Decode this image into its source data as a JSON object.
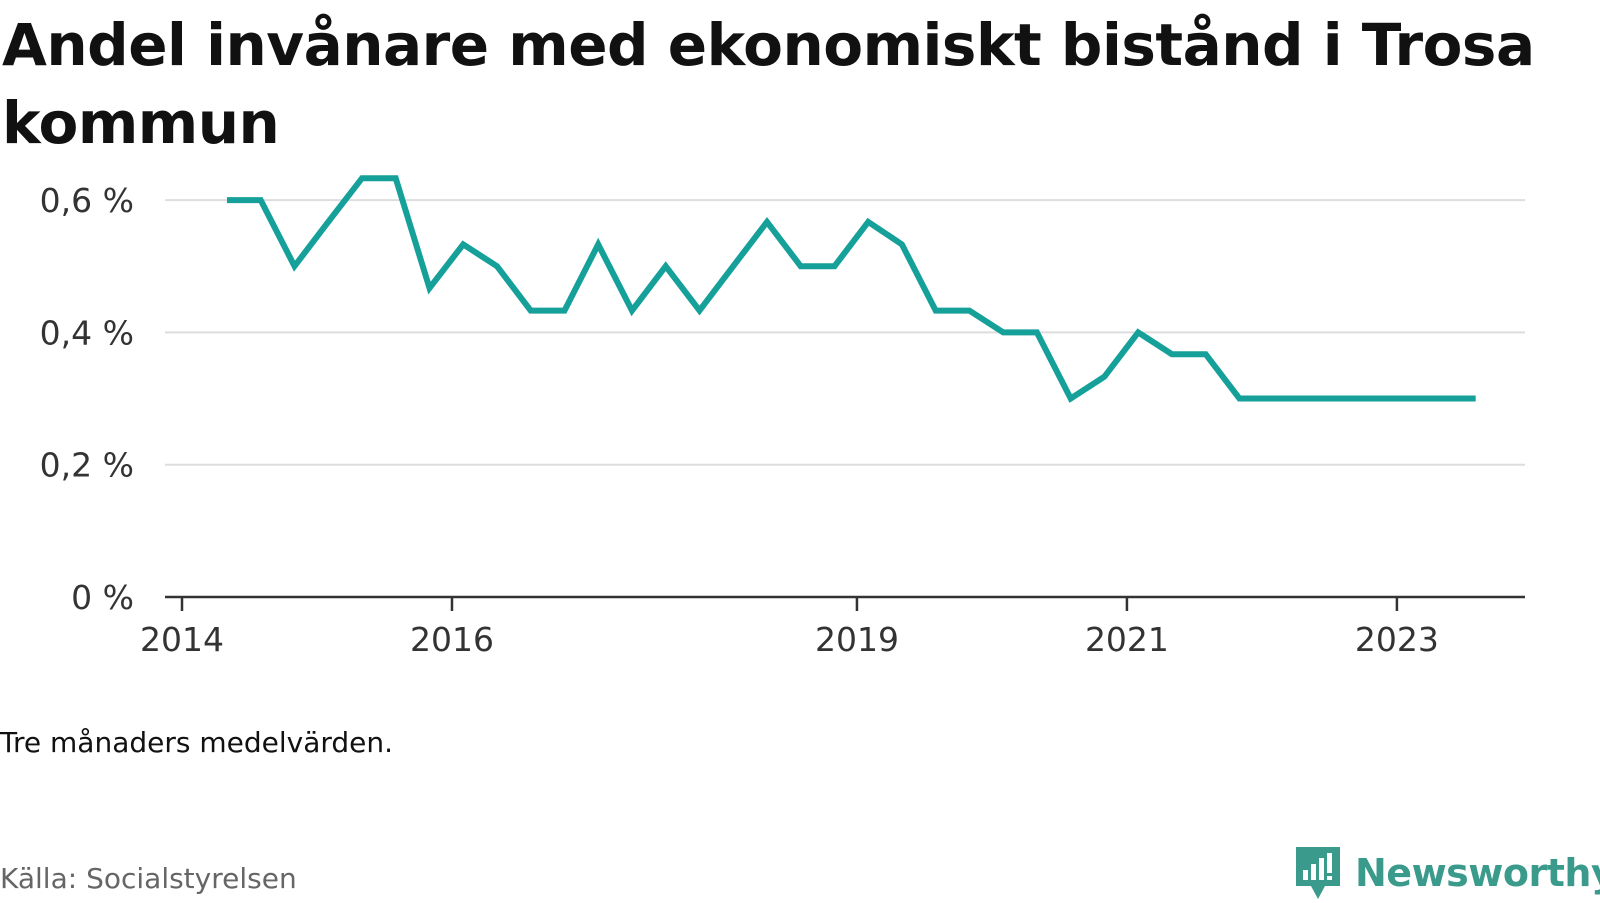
{
  "title": "Andel invånare med ekonomiskt bistånd i Trosa kommun",
  "note": "Tre månaders medelvärden.",
  "source": "Källa: Socialstyrelsen",
  "brand": "Newsworthy",
  "brand_icon": "newsworthy-logo-icon",
  "colors": {
    "line": "#16a09a",
    "grid": "#dddddd",
    "axis": "#333333",
    "brand": "#3a9a8c"
  },
  "chart_data": {
    "type": "line",
    "title": "Andel invånare med ekonomiskt bistånd i Trosa kommun",
    "xlabel": "",
    "ylabel": "",
    "x": [
      "2014-05",
      "2014-08",
      "2014-11",
      "2015-02",
      "2015-05",
      "2015-08",
      "2015-11",
      "2016-02",
      "2016-05",
      "2016-08",
      "2016-11",
      "2017-02",
      "2017-05",
      "2017-08",
      "2017-11",
      "2018-02",
      "2018-05",
      "2018-08",
      "2018-11",
      "2019-02",
      "2019-05",
      "2019-08",
      "2019-11",
      "2020-02",
      "2020-05",
      "2020-08",
      "2020-11",
      "2021-02",
      "2021-05",
      "2021-08",
      "2021-11",
      "2022-02",
      "2022-05",
      "2022-08",
      "2022-11",
      "2023-02",
      "2023-05",
      "2023-08"
    ],
    "series": [
      {
        "values": [
          0.6,
          0.6,
          0.5,
          0.567,
          0.633,
          0.633,
          0.467,
          0.533,
          0.5,
          0.433,
          0.433,
          0.533,
          0.433,
          0.5,
          0.433,
          0.5,
          0.567,
          0.5,
          0.5,
          0.567,
          0.533,
          0.433,
          0.433,
          0.4,
          0.4,
          0.3,
          0.333,
          0.4,
          0.367,
          0.367,
          0.3,
          0.3,
          0.3,
          0.3,
          0.3,
          0.3,
          0.3,
          0.3
        ]
      }
    ],
    "x_ticks": [
      "2014",
      "2016",
      "2019",
      "2021",
      "2023"
    ],
    "y_ticks": [
      "0 %",
      "0,2 %",
      "0,4 %",
      "0,6 %"
    ],
    "y_tick_values": [
      0,
      0.2,
      0.4,
      0.6
    ],
    "ylim": [
      0,
      0.65
    ],
    "grid": true,
    "legend": "none"
  }
}
